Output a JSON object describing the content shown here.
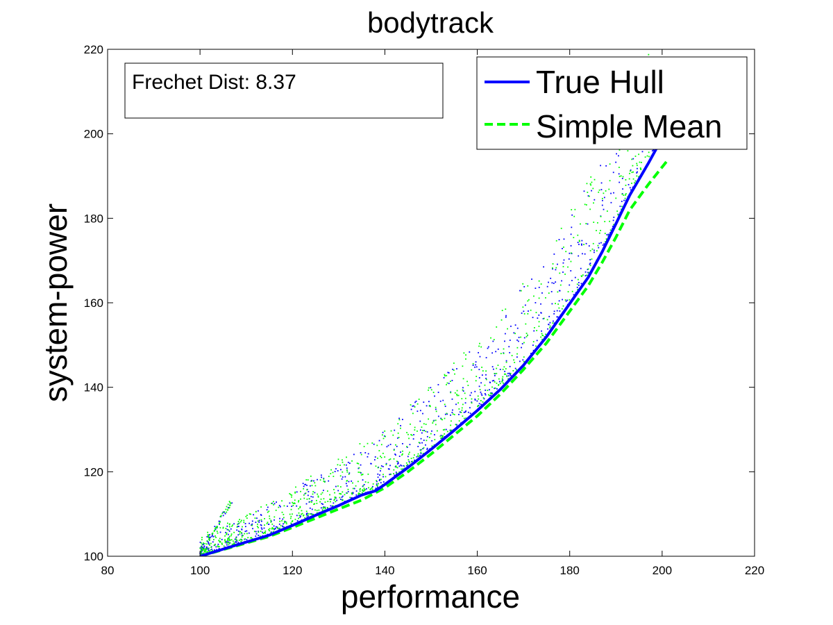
{
  "chart_data": {
    "type": "line",
    "title": "bodytrack",
    "xlabel": "performance",
    "ylabel": "system-power",
    "xlim": [
      80,
      220
    ],
    "ylim": [
      100,
      220
    ],
    "xticks": [
      80,
      100,
      120,
      140,
      160,
      180,
      200,
      220
    ],
    "yticks": [
      100,
      120,
      140,
      160,
      180,
      200,
      220
    ],
    "grid": false,
    "legend_position": "top-right",
    "annotation": "Frechet Dist: 8.37",
    "colors": {
      "true_hull": "#0000ff",
      "simple_mean": "#00ff00",
      "axis": "#000000"
    },
    "series": [
      {
        "name": "True Hull",
        "style": "solid",
        "color": "#0000ff",
        "x": [
          100,
          108,
          115,
          120,
          125,
          130,
          135,
          138,
          140,
          145,
          150,
          155,
          160,
          165,
          170,
          175,
          180,
          184,
          187,
          190,
          193,
          197,
          200
        ],
        "y": [
          100,
          102.7,
          105,
          107.3,
          109.7,
          112,
          114.5,
          115.5,
          117,
          121,
          125.3,
          129.8,
          134.5,
          139.5,
          145.2,
          152,
          159.8,
          166,
          172,
          178.7,
          185.5,
          193,
          199
        ]
      },
      {
        "name": "Simple Mean",
        "style": "dashed",
        "color": "#00ff00",
        "x": [
          100,
          108,
          115,
          120,
          125,
          130,
          135,
          140,
          145,
          150,
          155,
          160,
          165,
          170,
          175,
          180,
          184,
          187,
          190,
          193,
          197,
          201
        ],
        "y": [
          100,
          102.5,
          104.7,
          106.8,
          109,
          111.2,
          113.3,
          116.2,
          120,
          124.2,
          128.7,
          133.2,
          138.4,
          144.2,
          150.5,
          158,
          164,
          169.5,
          175.5,
          182,
          188,
          193.5
        ]
      }
    ],
    "scatter_series": [
      {
        "name": "",
        "color": "#0000ff",
        "count": 900
      },
      {
        "name": "",
        "color": "#00ff00",
        "count": 900
      }
    ]
  }
}
